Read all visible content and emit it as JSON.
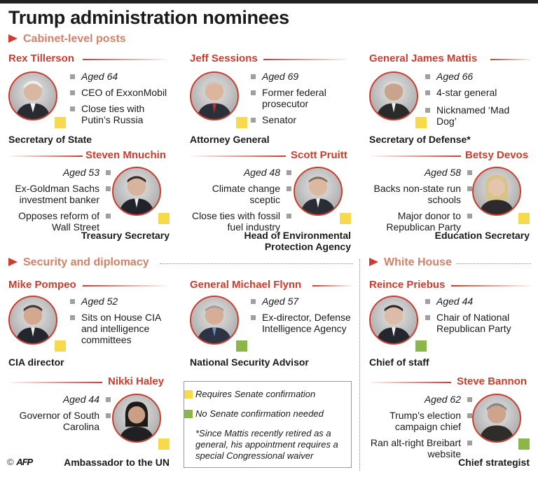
{
  "title": "Trump administration nominees",
  "sections": {
    "cabinet": "Cabinet-level posts",
    "security": "Security and diplomacy",
    "whitehouse": "White House"
  },
  "colors": {
    "accent": "#cf3b2c",
    "section": "#d2826a",
    "requires_confirmation": "#f7d94c",
    "no_confirmation": "#8cb54a"
  },
  "nominees": {
    "tillerson": {
      "name": "Rex Tillerson",
      "facts": [
        "Aged 64",
        "CEO of ExxonMobil",
        "Close ties with Putin’s Russia"
      ],
      "role": "Secretary of State",
      "status": "requires-confirmation"
    },
    "sessions": {
      "name": "Jeff Sessions",
      "facts": [
        "Aged 69",
        "Former federal prosecutor",
        "Senator"
      ],
      "role": "Attorney General",
      "status": "requires-confirmation"
    },
    "mattis": {
      "name": "General James Mattis",
      "facts": [
        "Aged 66",
        "4-star general",
        "Nicknamed ‘Mad Dog’"
      ],
      "role": "Secretary of Defense*",
      "status": "requires-confirmation"
    },
    "mnuchin": {
      "name": "Steven Mnuchin",
      "facts": [
        "Aged 53",
        "Ex-Goldman Sachs investment banker",
        "Opposes reform of Wall Street"
      ],
      "role": "Treasury Secretary",
      "status": "requires-confirmation"
    },
    "pruitt": {
      "name": "Scott Pruitt",
      "facts": [
        "Aged 48",
        "Climate change sceptic",
        "Close ties with fossil fuel industry"
      ],
      "role": "Head of Environmental Protection Agency",
      "status": "requires-confirmation"
    },
    "devos": {
      "name": "Betsy Devos",
      "facts": [
        "Aged 58",
        "Backs non-state run schools",
        "Major donor to Republican Party"
      ],
      "role": "Education Secretary",
      "status": "requires-confirmation"
    },
    "pompeo": {
      "name": "Mike Pompeo",
      "facts": [
        "Aged 52",
        "Sits on House CIA and intelligence committees"
      ],
      "role": "CIA director",
      "status": "requires-confirmation"
    },
    "flynn": {
      "name": "General Michael Flynn",
      "facts": [
        "Aged 57",
        "Ex-director, Defense Intelligence Agency"
      ],
      "role": "National Security Advisor",
      "status": "no-confirmation"
    },
    "priebus": {
      "name": "Reince Priebus",
      "facts": [
        "Aged 44",
        "Chair of National Republican Party"
      ],
      "role": "Chief of staff",
      "status": "no-confirmation"
    },
    "haley": {
      "name": "Nikki Haley",
      "facts": [
        "Aged 44",
        "Governor of South Carolina"
      ],
      "role": "Ambassador to the UN",
      "status": "requires-confirmation"
    },
    "bannon": {
      "name": "Steve Bannon",
      "facts": [
        "Aged 62",
        "Trump’s election campaign chief",
        "Ran alt-right Breibart website"
      ],
      "role": "Chief strategist",
      "status": "no-confirmation"
    }
  },
  "legend": {
    "requires": "Requires Senate confirmation",
    "none": "No Senate confirmation needed",
    "note": "*Since Mattis recently retired as a general, his appointment requires a special Congressional waiver"
  },
  "credit": {
    "copyright": "©",
    "agency": "AFP"
  }
}
